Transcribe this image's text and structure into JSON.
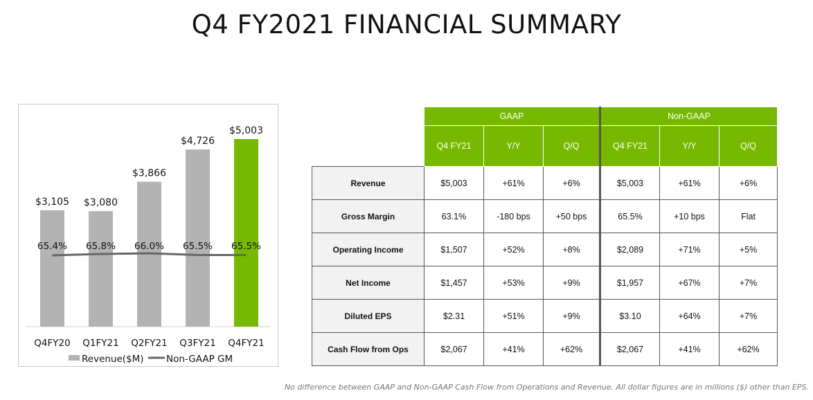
{
  "title": "Q4 FY2021 FINANCIAL SUMMARY",
  "colors": {
    "accent": "#76b900",
    "bar_gray": "#b3b3b3",
    "line_gray": "#666666"
  },
  "chart_data": {
    "type": "bar",
    "categories": [
      "Q4FY20",
      "Q1FY21",
      "Q2FY21",
      "Q3FY21",
      "Q4FY21"
    ],
    "series": [
      {
        "name": "Revenue($M)",
        "type": "bar",
        "values": [
          3105,
          3080,
          3866,
          4726,
          5003
        ],
        "labels": [
          "$3,105",
          "$3,080",
          "$3,866",
          "$4,726",
          "$5,003"
        ]
      },
      {
        "name": "Non-GAAP GM",
        "type": "line",
        "values": [
          65.4,
          65.8,
          66.0,
          65.5,
          65.5
        ],
        "labels": [
          "65.4%",
          "65.8%",
          "66.0%",
          "65.5%",
          "65.5%"
        ]
      }
    ],
    "highlight_index": 4,
    "legend": [
      "Revenue($M)",
      "Non-GAAP GM"
    ],
    "legend_position": "bottom"
  },
  "table": {
    "groups": [
      "GAAP",
      "Non-GAAP"
    ],
    "columns": [
      "Q4 FY21",
      "Y/Y",
      "Q/Q",
      "Q4 FY21",
      "Y/Y",
      "Q/Q"
    ],
    "rows": [
      {
        "label": "Revenue",
        "values": [
          "$5,003",
          "+61%",
          "+6%",
          "$5,003",
          "+61%",
          "+6%"
        ]
      },
      {
        "label": "Gross Margin",
        "values": [
          "63.1%",
          "-180 bps",
          "+50 bps",
          "65.5%",
          "+10 bps",
          "Flat"
        ]
      },
      {
        "label": "Operating Income",
        "values": [
          "$1,507",
          "+52%",
          "+8%",
          "$2,089",
          "+71%",
          "+5%"
        ]
      },
      {
        "label": "Net Income",
        "values": [
          "$1,457",
          "+53%",
          "+9%",
          "$1,957",
          "+67%",
          "+7%"
        ]
      },
      {
        "label": "Diluted EPS",
        "values": [
          "$2.31",
          "+51%",
          "+9%",
          "$3.10",
          "+64%",
          "+7%"
        ]
      },
      {
        "label": "Cash Flow from Ops",
        "values": [
          "$2,067",
          "+41%",
          "+62%",
          "$2,067",
          "+41%",
          "+62%"
        ]
      }
    ]
  },
  "footnote": "No difference between GAAP and Non-GAAP Cash Flow from Operations and Revenue. All dollar figures are in millions ($) other than EPS."
}
